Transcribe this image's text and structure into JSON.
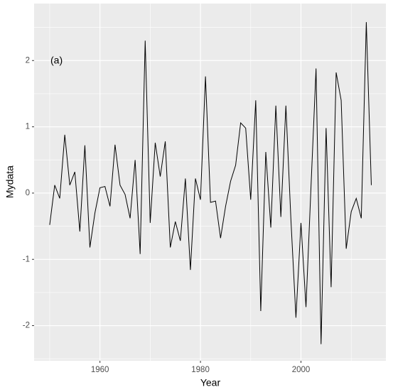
{
  "chart_data": {
    "type": "line",
    "annotation": "(a)",
    "x_label": "Year",
    "y_label": "Mydata",
    "x": [
      1950,
      1951,
      1952,
      1953,
      1954,
      1955,
      1956,
      1957,
      1958,
      1959,
      1960,
      1961,
      1962,
      1963,
      1964,
      1965,
      1966,
      1967,
      1968,
      1969,
      1970,
      1971,
      1972,
      1973,
      1974,
      1975,
      1976,
      1977,
      1978,
      1979,
      1980,
      1981,
      1982,
      1983,
      1984,
      1985,
      1986,
      1987,
      1988,
      1989,
      1990,
      1991,
      1992,
      1993,
      1994,
      1995,
      1996,
      1997,
      1998,
      1999,
      2000,
      2001,
      2002,
      2003,
      2004,
      2005,
      2006,
      2007,
      2008,
      2009,
      2010,
      2011,
      2012,
      2013,
      2014
    ],
    "values": [
      -0.48,
      0.12,
      -0.08,
      0.88,
      0.12,
      0.32,
      -0.58,
      0.72,
      -0.82,
      -0.3,
      0.08,
      0.1,
      -0.2,
      0.73,
      0.12,
      -0.02,
      -0.38,
      0.5,
      -0.92,
      2.3,
      -0.45,
      0.76,
      0.25,
      0.78,
      -0.82,
      -0.43,
      -0.72,
      0.22,
      -1.16,
      0.22,
      -0.1,
      1.76,
      -0.14,
      -0.12,
      -0.68,
      -0.2,
      0.18,
      0.42,
      1.06,
      0.98,
      -0.1,
      1.4,
      -1.78,
      0.62,
      -0.52,
      1.32,
      -0.36,
      1.32,
      -0.4,
      -1.88,
      -0.45,
      -1.72,
      0.1,
      1.88,
      -2.28,
      0.98,
      -1.42,
      1.82,
      1.4,
      -0.84,
      -0.28,
      -0.08,
      -0.38,
      2.58,
      0.12
    ],
    "color": "#000000",
    "xlim": [
      1946.9,
      2016.9
    ],
    "xticks": [
      1960,
      1980,
      2000
    ],
    "ylim": [
      -2.53,
      2.86
    ],
    "yticks": [
      -2,
      -1,
      0,
      1,
      2
    ],
    "grid": true
  }
}
